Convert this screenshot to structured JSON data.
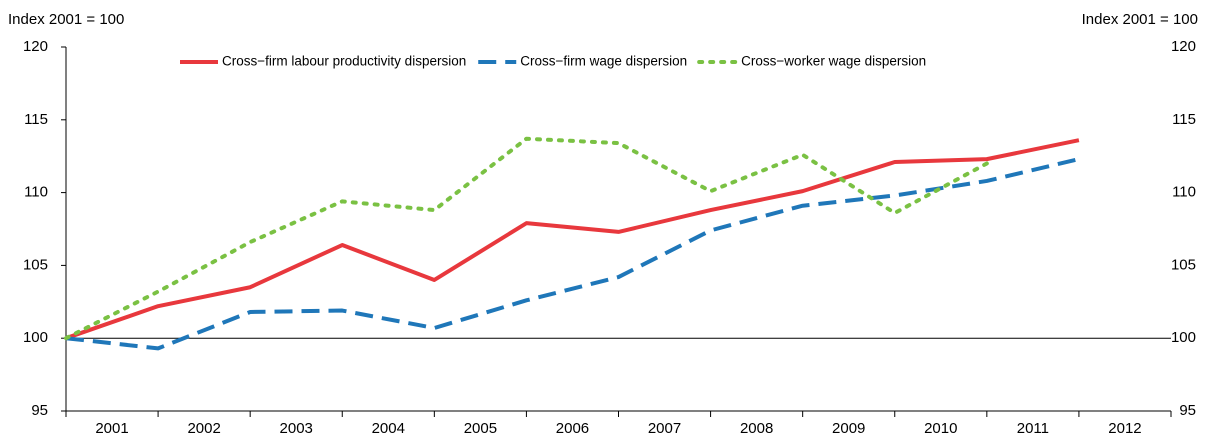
{
  "chart_data": {
    "type": "line",
    "ylabel": "Index 2001 = 100",
    "y2label": "Index 2001 = 100",
    "categories": [
      "2001",
      "2002",
      "2003",
      "2004",
      "2005",
      "2006",
      "2007",
      "2008",
      "2009",
      "2010",
      "2011",
      "2012"
    ],
    "series": [
      {
        "name": "Cross−firm labour productivity dispersion",
        "color": "#e8383d",
        "style": "solid",
        "values": [
          100,
          102.2,
          103.5,
          106.4,
          104.0,
          107.9,
          107.3,
          108.8,
          110.1,
          112.1,
          112.3,
          113.6
        ]
      },
      {
        "name": "Cross−firm wage dispersion",
        "color": "#1f77b9",
        "style": "dashed",
        "values": [
          100,
          99.3,
          101.8,
          101.9,
          100.7,
          102.6,
          104.2,
          107.4,
          109.1,
          109.8,
          110.8,
          112.3
        ]
      },
      {
        "name": "Cross−worker wage dispersion",
        "color": "#7ac143",
        "style": "dotted",
        "values": [
          100,
          103.2,
          106.6,
          109.4,
          108.8,
          113.7,
          113.4,
          110.1,
          112.6,
          108.6,
          112.0,
          null
        ]
      }
    ],
    "reference_line": 100,
    "ylim": [
      95,
      120
    ],
    "yticks": [
      95,
      100,
      105,
      110,
      115,
      120
    ],
    "y2lim": [
      95,
      120
    ],
    "y2ticks": [
      95,
      100,
      105,
      110,
      115,
      120
    ],
    "legend": "top"
  }
}
